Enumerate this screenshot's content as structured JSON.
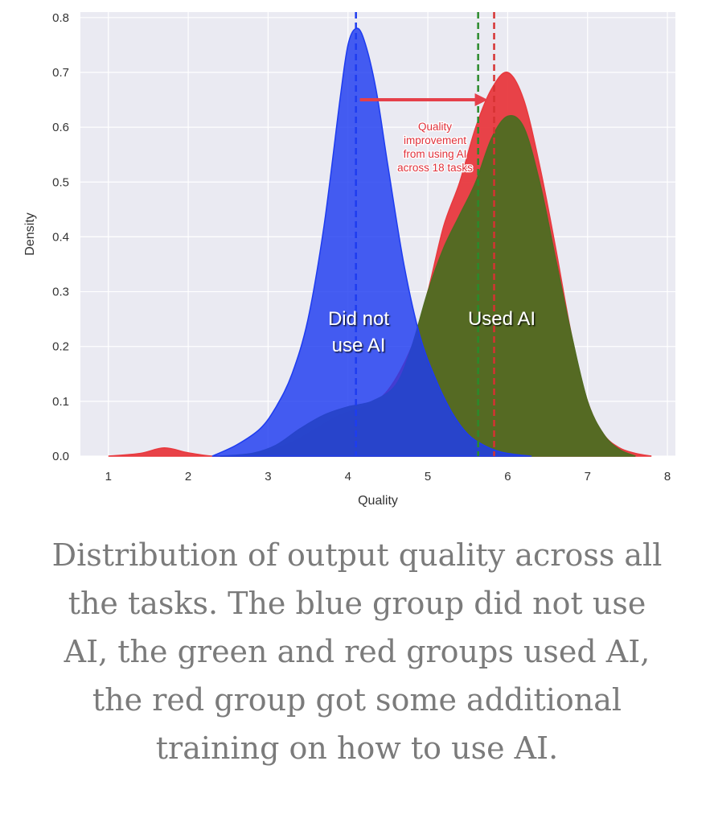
{
  "chart_data": {
    "type": "area",
    "xlabel": "Quality",
    "ylabel": "Density",
    "xlim": [
      0.65,
      8.1
    ],
    "ylim": [
      0,
      0.81
    ],
    "x_ticks": [
      1,
      2,
      3,
      4,
      5,
      6,
      7,
      8
    ],
    "y_ticks": [
      0.0,
      0.1,
      0.2,
      0.3,
      0.4,
      0.5,
      0.6,
      0.7,
      0.8
    ],
    "x_tick_labels": [
      "1",
      "2",
      "3",
      "4",
      "5",
      "6",
      "7",
      "8"
    ],
    "y_tick_labels": [
      "0.0",
      "0.1",
      "0.2",
      "0.3",
      "0.4",
      "0.5",
      "0.6",
      "0.7",
      "0.8"
    ],
    "grid": true,
    "series": [
      {
        "color": "#e8393e",
        "x": [
          1.0,
          1.4,
          1.7,
          2.0,
          2.3,
          2.7,
          3.0,
          3.3,
          3.6,
          3.9,
          4.2,
          4.5,
          4.8,
          5.0,
          5.2,
          5.4,
          5.6,
          5.8,
          6.0,
          6.2,
          6.4,
          6.6,
          6.8,
          7.0,
          7.2,
          7.4,
          7.6,
          7.8
        ],
        "values": [
          0.0,
          0.005,
          0.015,
          0.006,
          0.0,
          0.0,
          0.01,
          0.025,
          0.05,
          0.075,
          0.09,
          0.12,
          0.2,
          0.3,
          0.42,
          0.5,
          0.6,
          0.67,
          0.7,
          0.65,
          0.53,
          0.38,
          0.22,
          0.1,
          0.04,
          0.015,
          0.005,
          0.0
        ]
      },
      {
        "color": "#4f6b22",
        "x": [
          2.4,
          2.8,
          3.1,
          3.4,
          3.7,
          4.0,
          4.3,
          4.6,
          4.8,
          5.0,
          5.2,
          5.4,
          5.6,
          5.8,
          6.0,
          6.2,
          6.4,
          6.6,
          6.8,
          7.0,
          7.2,
          7.4,
          7.6
        ],
        "values": [
          0.0,
          0.005,
          0.02,
          0.05,
          0.075,
          0.09,
          0.1,
          0.13,
          0.2,
          0.3,
          0.38,
          0.44,
          0.5,
          0.58,
          0.62,
          0.6,
          0.5,
          0.36,
          0.22,
          0.1,
          0.04,
          0.012,
          0.0
        ]
      },
      {
        "color": "#1e3cf0",
        "x": [
          2.3,
          2.6,
          2.9,
          3.1,
          3.3,
          3.5,
          3.7,
          3.9,
          4.0,
          4.1,
          4.2,
          4.35,
          4.5,
          4.7,
          4.9,
          5.1,
          5.3,
          5.5,
          5.7,
          5.9,
          6.1,
          6.3
        ],
        "values": [
          0.0,
          0.02,
          0.05,
          0.09,
          0.15,
          0.25,
          0.42,
          0.65,
          0.75,
          0.78,
          0.76,
          0.67,
          0.53,
          0.35,
          0.22,
          0.14,
          0.08,
          0.04,
          0.02,
          0.008,
          0.003,
          0.0
        ]
      }
    ],
    "mean_lines": [
      {
        "x": 4.1,
        "color": "#1e3cf0"
      },
      {
        "x": 5.63,
        "color": "#2b8a2b"
      },
      {
        "x": 5.83,
        "color": "#d63232"
      }
    ],
    "annotations": {
      "did_not_use_ai": [
        "Did not",
        "use AI"
      ],
      "used_ai": "Used AI",
      "improvement": [
        "Quality",
        "improvement",
        "from using AI",
        "across 18 tasks"
      ],
      "arrow": {
        "x_from": 4.15,
        "x_to": 5.75,
        "y": 0.65
      }
    }
  },
  "caption": "Distribution of output quality across all the tasks. The blue group did not use AI, the green and red groups used AI, the red group got some additional training on how to use AI."
}
